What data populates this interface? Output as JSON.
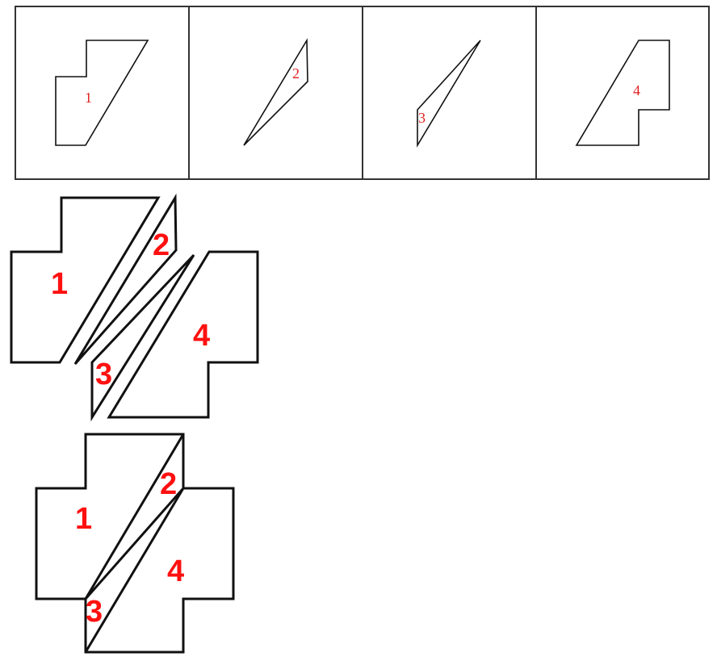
{
  "pieces": [
    {
      "id": "1",
      "label": "1"
    },
    {
      "id": "2",
      "label": "2"
    },
    {
      "id": "3",
      "label": "3"
    },
    {
      "id": "4",
      "label": "4"
    }
  ]
}
